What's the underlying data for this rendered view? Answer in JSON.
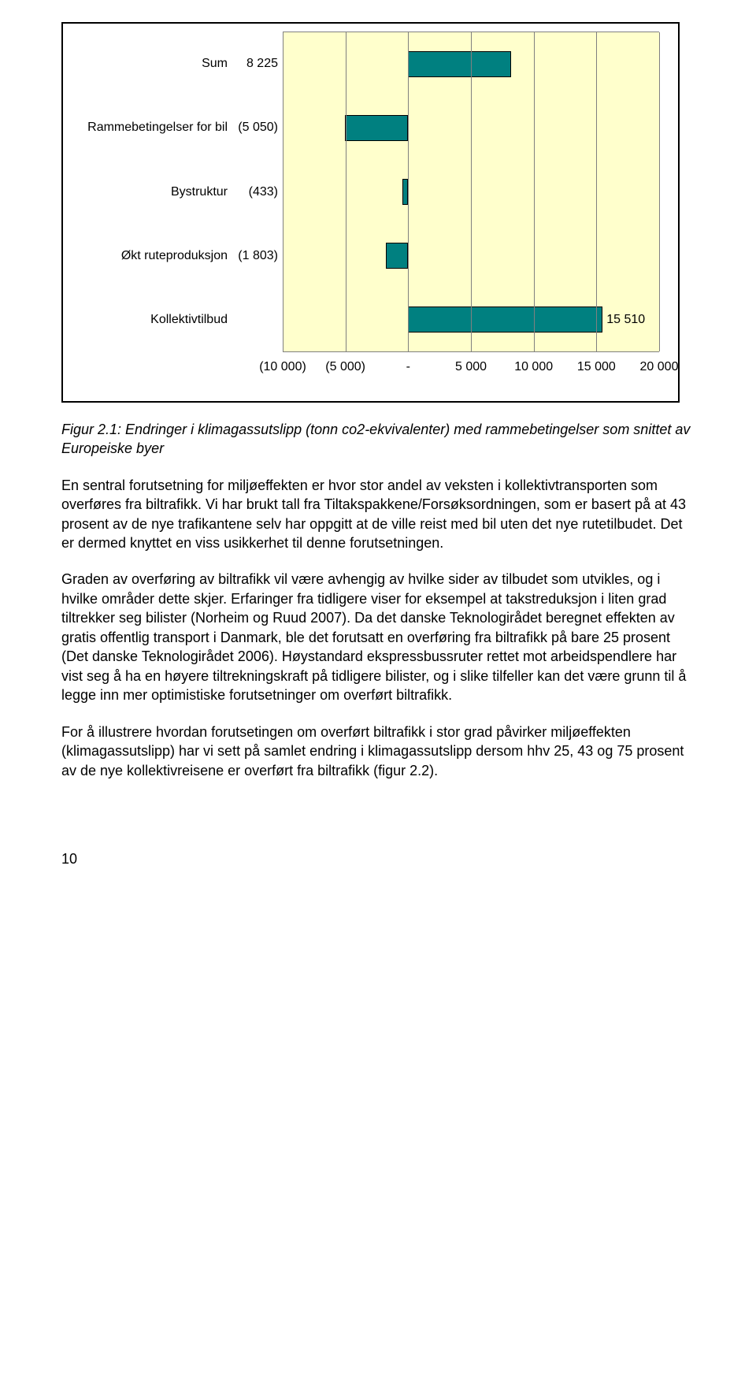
{
  "chart": {
    "type": "bar",
    "background_color": "#FFFFCC",
    "bar_color": "#008080",
    "bar_border_color": "#000000",
    "grid_color": "#808080",
    "frame_color": "#000000",
    "xmin": -10000,
    "xmax": 20000,
    "xticks": [
      {
        "v": -10000,
        "label": "(10 000)"
      },
      {
        "v": -5000,
        "label": "(5 000)"
      },
      {
        "v": 0,
        "label": "-"
      },
      {
        "v": 5000,
        "label": "5 000"
      },
      {
        "v": 10000,
        "label": "10 000"
      },
      {
        "v": 15000,
        "label": "15 000"
      },
      {
        "v": 20000,
        "label": "20 000"
      }
    ],
    "categories": [
      {
        "label": "Sum",
        "value_label": "8 225",
        "value": 8225
      },
      {
        "label": "Rammebetingelser for bil",
        "value_label": "(5 050)",
        "value": -5050
      },
      {
        "label": "Bystruktur",
        "value_label": "(433)",
        "value": -433
      },
      {
        "label": "Økt ruteproduksjon",
        "value_label": "(1 803)",
        "value": -1803
      },
      {
        "label": "Kollektivtilbud",
        "value_label": "15 510",
        "value": 15510
      }
    ]
  },
  "caption": "Figur 2.1: Endringer i klimagassutslipp (tonn co2-ekvivalenter) med rammebetingelser som snittet av Europeiske byer",
  "paragraphs": [
    "En sentral forutsetning for miljøeffekten er hvor stor andel av veksten i kollektivtransporten som overføres fra biltrafikk. Vi har brukt tall fra Tiltakspakkene/Forsøksordningen, som er basert på at 43 prosent av de nye trafikantene selv har oppgitt at de ville reist med bil uten det nye rutetilbudet. Det er dermed knyttet en viss usikkerhet til denne forutsetningen.",
    "Graden av overføring av biltrafikk vil være avhengig av hvilke sider av tilbudet som utvikles, og i hvilke områder dette skjer. Erfaringer fra tidligere viser for eksempel at takstreduksjon i liten grad tiltrekker seg bilister (Norheim og Ruud 2007). Da det danske Teknologirådet beregnet effekten av gratis offentlig transport i Danmark, ble det forutsatt en overføring fra biltrafikk på bare 25 prosent (Det danske Teknologirådet 2006). Høystandard ekspressbussruter rettet mot arbeidspendlere har vist seg å ha en høyere tiltrekningskraft på tidligere bilister, og i slike tilfeller kan det være grunn til å legge inn mer optimistiske forutsetninger om overført biltrafikk.",
    "For å illustrere hvordan forutsetingen om overført biltrafikk i stor grad påvirker miljøeffekten (klimagassutslipp) har vi sett på samlet endring i klimagassutslipp dersom hhv 25, 43 og 75 prosent av de nye kollektivreisene er overført fra biltrafikk (figur 2.2)."
  ],
  "page_number": "10"
}
